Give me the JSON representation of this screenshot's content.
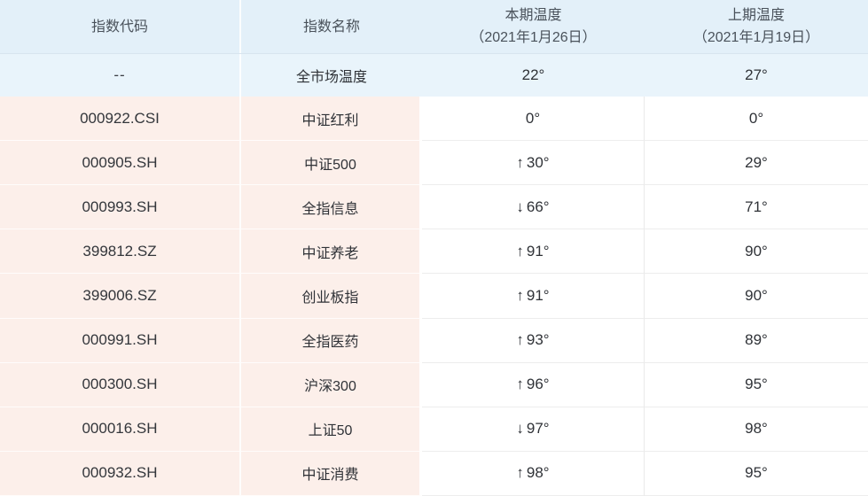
{
  "table": {
    "columns": [
      {
        "label": "指数代码"
      },
      {
        "label": "指数名称"
      },
      {
        "label": "本期温度",
        "sublabel": "（2021年1月26日）"
      },
      {
        "label": "上期温度",
        "sublabel": "（2021年1月19日）"
      }
    ],
    "summary_row": {
      "code": "--",
      "name": "全市场温度",
      "current": "22°",
      "previous": "27°"
    },
    "rows": [
      {
        "code": "000922.CSI",
        "name": "中证红利",
        "trend": "none",
        "current": "0°",
        "previous": "0°"
      },
      {
        "code": "000905.SH",
        "name": "中证500",
        "trend": "up",
        "current": "30°",
        "previous": "29°"
      },
      {
        "code": "000993.SH",
        "name": "全指信息",
        "trend": "down",
        "current": "66°",
        "previous": "71°"
      },
      {
        "code": "399812.SZ",
        "name": "中证养老",
        "trend": "up",
        "current": "91°",
        "previous": "90°"
      },
      {
        "code": "399006.SZ",
        "name": "创业板指",
        "trend": "up",
        "current": "91°",
        "previous": "90°"
      },
      {
        "code": "000991.SH",
        "name": "全指医药",
        "trend": "up",
        "current": "93°",
        "previous": "89°"
      },
      {
        "code": "000300.SH",
        "name": "沪深300",
        "trend": "up",
        "current": "96°",
        "previous": "95°"
      },
      {
        "code": "000016.SH",
        "name": "上证50",
        "trend": "down",
        "current": "97°",
        "previous": "98°"
      },
      {
        "code": "000932.SH",
        "name": "中证消费",
        "trend": "up",
        "current": "98°",
        "previous": "95°"
      }
    ]
  },
  "icons": {
    "up_arrow": "↑",
    "down_arrow": "↓"
  },
  "colors": {
    "header_bg": "#E3F0F9",
    "summary_bg": "#E9F4FB",
    "pink_bg": "#FCEFEA",
    "white_bg": "#FFFFFF",
    "header_divider": "#D7E4EF",
    "gray_line": "#EDEDED",
    "text_dark": "#2F3237",
    "text_header": "#4A525B"
  }
}
